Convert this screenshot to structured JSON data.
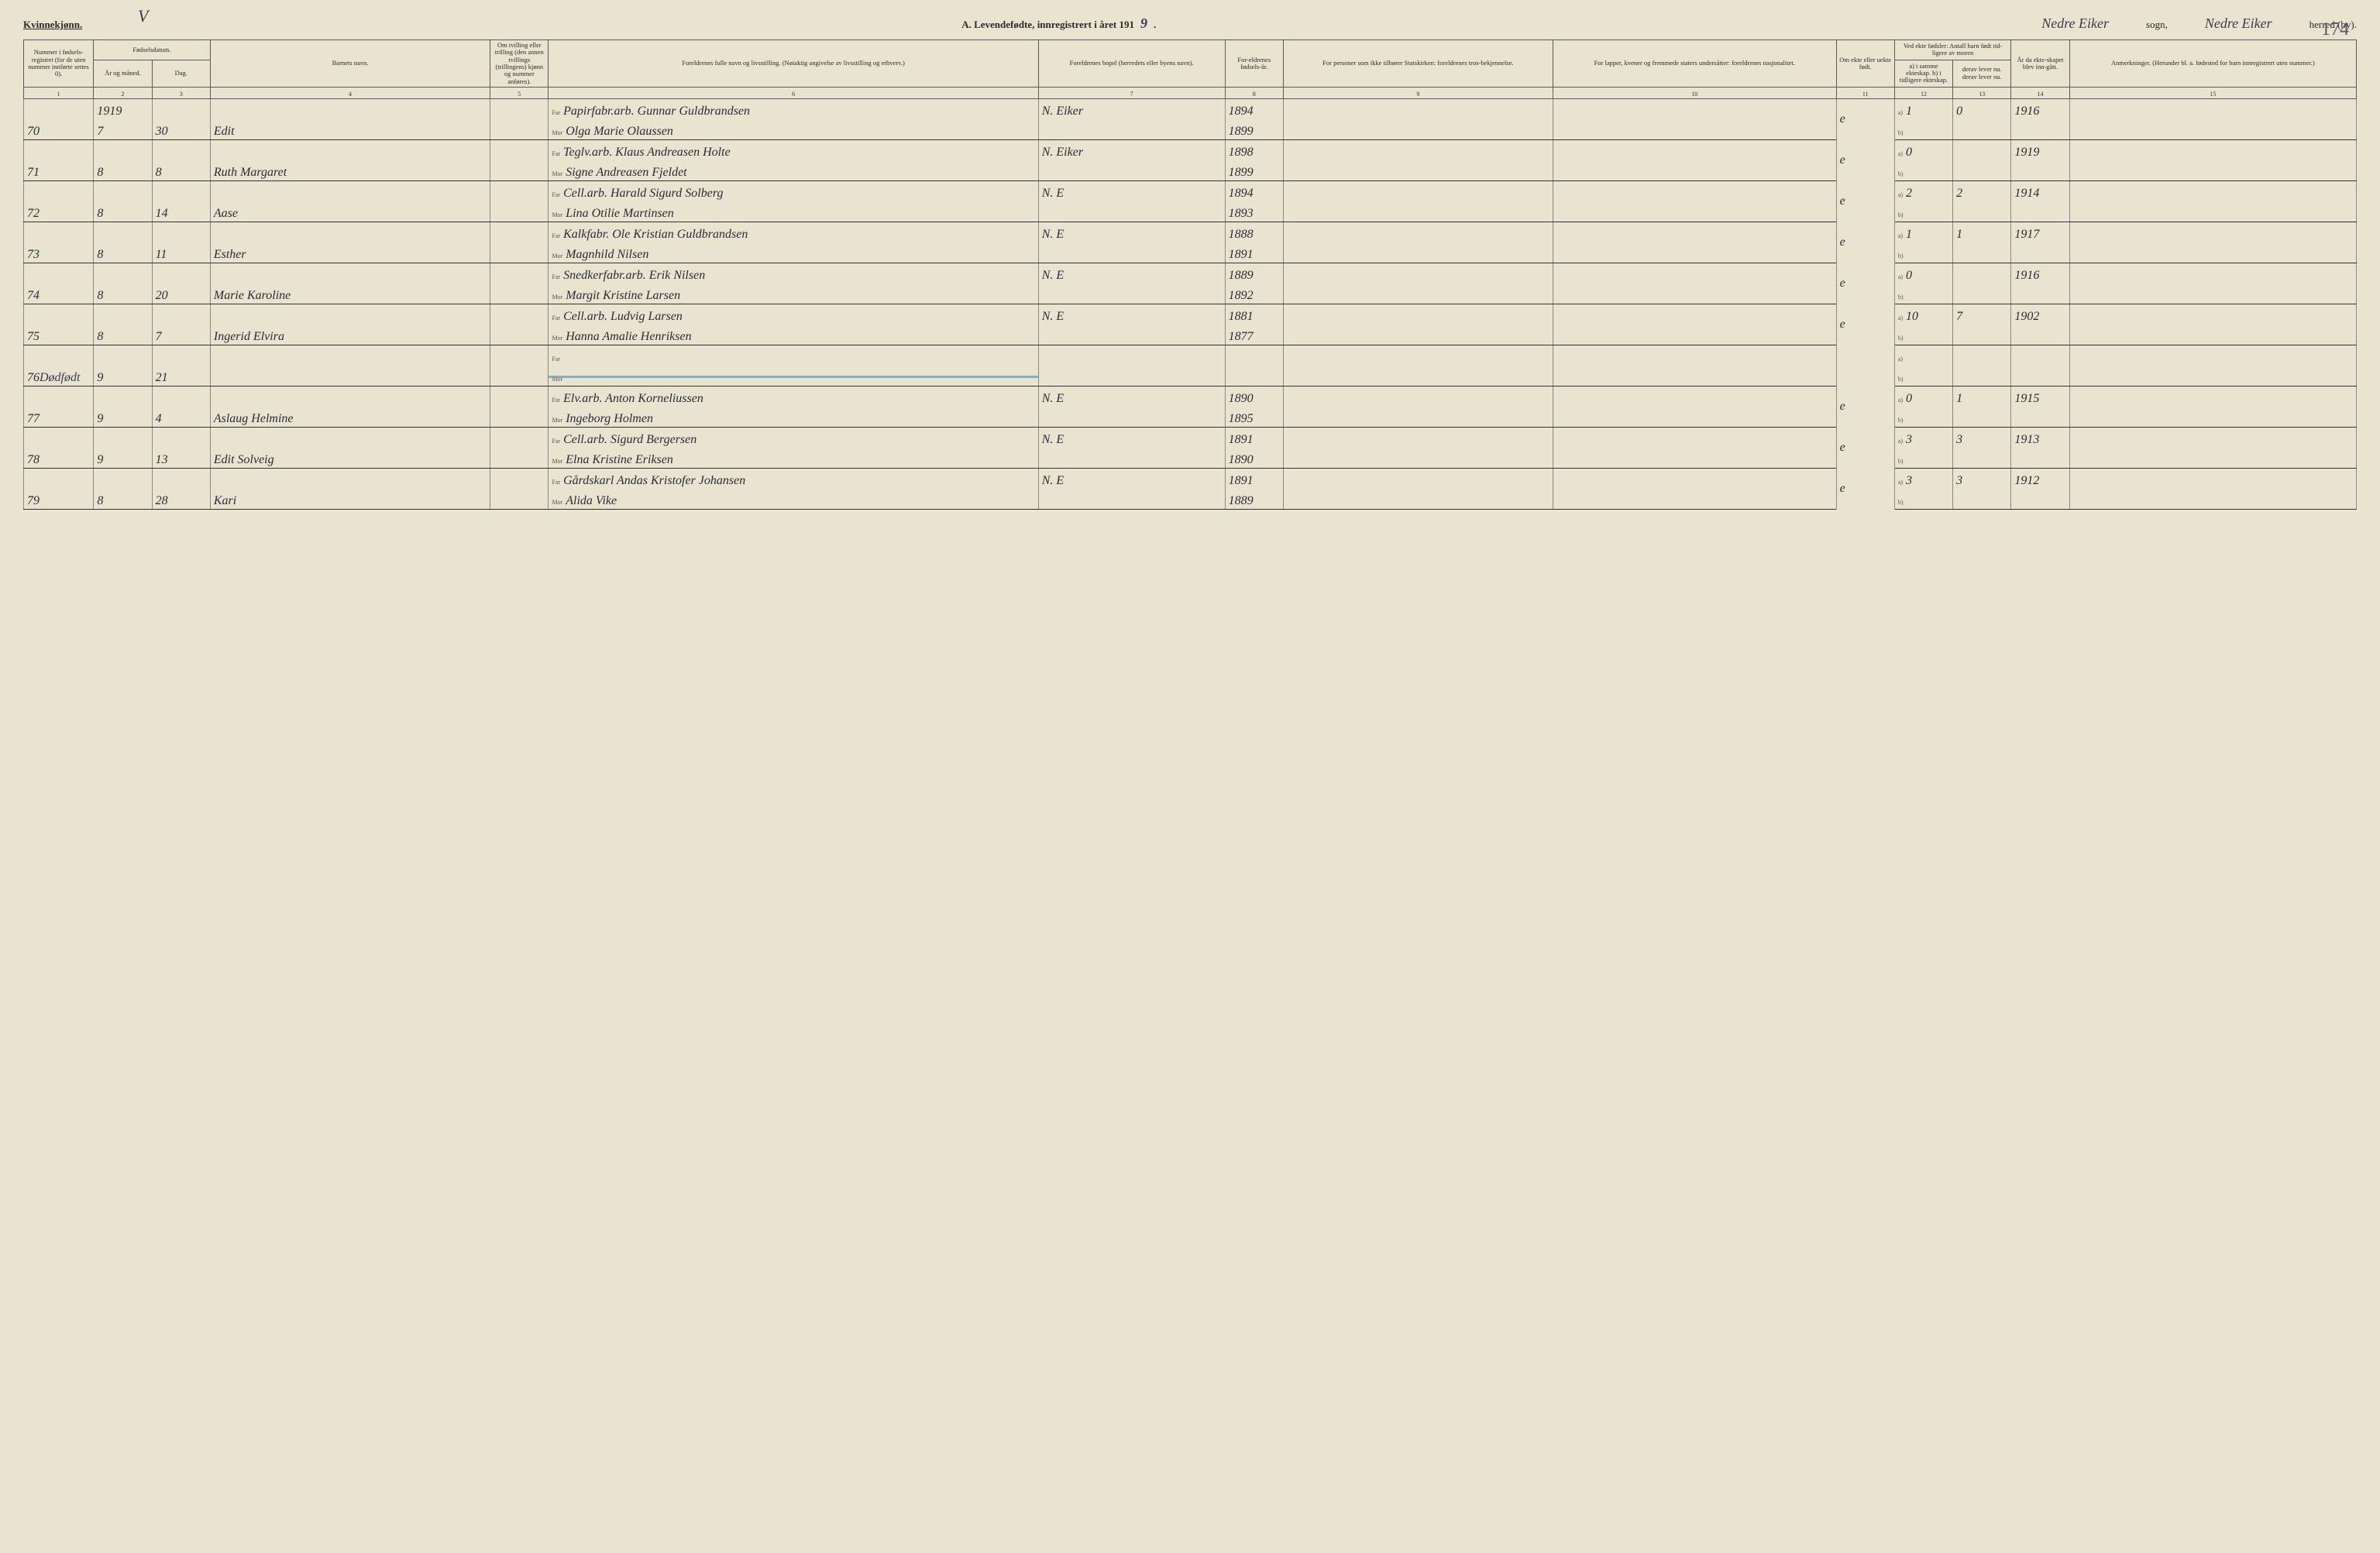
{
  "header": {
    "gender_label": "Kvinnekjønn.",
    "title_prefix": "A.  Levendefødte, innregistrert i året 191",
    "year_suffix": "9",
    "sogn_value": "Nedre Eiker",
    "sogn_label": "sogn,",
    "herred_value": "Nedre Eiker",
    "herred_label": "herred (by).",
    "page_number": "174",
    "top_mark": "V"
  },
  "columns": {
    "c1": "Nummer i fødsels-registret (for de uten nummer innførte settes 0).",
    "c2_group": "Fødselsdatum.",
    "c2": "År og måned.",
    "c3": "Dag.",
    "c4": "Barnets navn.",
    "c5": "Om tvilling eller trilling (den annen tvillings (trillingens) kjønn og nummer anføres).",
    "c6": "Foreldrenes fulle navn og livsstilling. (Nøiaktig angivelse av livsstilling og erhverv.)",
    "c7": "Foreldrenes bopel (herredets eller byens navn).",
    "c8": "For-eldrenes fødsels-år.",
    "c9": "For personer som ikke tilhører Statskirken: foreldrenes tros-bekjennelse.",
    "c10": "For lapper, kvener og fremmede staters undersåtter: foreldrenes nasjonalitet.",
    "c11": "Om ekte eller uekte født.",
    "c12_group": "Ved ekte fødsler: Antall barn født tid-ligere av moren",
    "c12": "a) i samme ekteskap.  b) i tidligere ekteskap.",
    "c13": "derav lever nu.  derav lever nu.",
    "c14": "År da ekte-skapet blev inn-gått.",
    "c15": "Anmerkninger. (Herunder bl. a. fødested for barn innregistrert uten nummer.)"
  },
  "col_nums": [
    "1",
    "2",
    "3",
    "4",
    "5",
    "6",
    "7",
    "8",
    "9",
    "10",
    "11",
    "12",
    "13",
    "14",
    "15"
  ],
  "far_label": "Far",
  "mor_label": "Mor",
  "a_label": "a)",
  "b_label": "b)",
  "margin_note": "Dødfødt",
  "rows": [
    {
      "num": "70",
      "year_month_top": "1919",
      "year_month": "7",
      "day": "30",
      "name": "Edit",
      "far": "Papirfabr.arb. Gunnar Guldbrandsen",
      "mor": "Olga Marie Olaussen",
      "place": "N. Eiker",
      "far_year": "1894",
      "mor_year": "1899",
      "ekte": "e",
      "a12": "1",
      "a13": "0",
      "year14": "1916"
    },
    {
      "num": "71",
      "year_month": "8",
      "day": "8",
      "name": "Ruth Margaret",
      "far": "Teglv.arb. Klaus Andreasen Holte",
      "mor": "Signe Andreasen Fjeldet",
      "place": "N. Eiker",
      "far_year": "1898",
      "mor_year": "1899",
      "ekte": "e",
      "a12": "0",
      "a13": "",
      "year14": "1919"
    },
    {
      "num": "72",
      "year_month": "8",
      "day": "14",
      "name": "Aase",
      "far": "Cell.arb. Harald Sigurd Solberg",
      "mor": "Lina Otilie Martinsen",
      "place": "N. E",
      "far_year": "1894",
      "mor_year": "1893",
      "ekte": "e",
      "a12": "2",
      "a13": "2",
      "year14": "1914"
    },
    {
      "num": "73",
      "year_month": "8",
      "day": "11",
      "name": "Esther",
      "far": "Kalkfabr. Ole Kristian Guldbrandsen",
      "mor": "Magnhild Nilsen",
      "place": "N. E",
      "far_year": "1888",
      "mor_year": "1891",
      "ekte": "e",
      "a12": "1",
      "a13": "1",
      "year14": "1917"
    },
    {
      "num": "74",
      "year_month": "8",
      "day": "20",
      "name": "Marie Karoline",
      "far": "Snedkerfabr.arb. Erik Nilsen",
      "mor": "Margit Kristine Larsen",
      "place": "N. E",
      "far_year": "1889",
      "mor_year": "1892",
      "ekte": "e",
      "a12": "0",
      "a13": "",
      "year14": "1916"
    },
    {
      "num": "75",
      "year_month": "8",
      "day": "7",
      "name": "Ingerid Elvira",
      "far": "Cell.arb. Ludvig Larsen",
      "mor": "Hanna Amalie Henriksen",
      "place": "N. E",
      "far_year": "1881",
      "mor_year": "1877",
      "ekte": "e",
      "a12": "10",
      "a13": "7",
      "year14": "1902"
    },
    {
      "num": "76",
      "year_month": "9",
      "day": "21",
      "name": "",
      "far": "",
      "mor": "",
      "place": "",
      "far_year": "",
      "mor_year": "",
      "ekte": "",
      "a12": "",
      "a13": "",
      "year14": "",
      "struck": true
    },
    {
      "num": "77",
      "year_month": "9",
      "day": "4",
      "name": "Aslaug Helmine",
      "far": "Elv.arb. Anton Korneliussen",
      "mor": "Ingeborg Holmen",
      "place": "N. E",
      "far_year": "1890",
      "mor_year": "1895",
      "ekte": "e",
      "a12": "0",
      "a13": "1",
      "year14": "1915"
    },
    {
      "num": "78",
      "year_month": "9",
      "day": "13",
      "name": "Edit Solveig",
      "far": "Cell.arb. Sigurd Bergersen",
      "mor": "Elna Kristine Eriksen",
      "place": "N. E",
      "far_year": "1891",
      "mor_year": "1890",
      "ekte": "e",
      "a12": "3",
      "a13": "3",
      "year14": "1913"
    },
    {
      "num": "79",
      "year_month": "8",
      "day": "28",
      "name": "Kari",
      "far": "Gårdskarl Andas Kristofer Johansen",
      "mor": "Alida Vike",
      "place": "N. E",
      "far_year": "1891",
      "mor_year": "1889",
      "ekte": "e",
      "a12": "3",
      "a13": "3",
      "year14": "1912"
    }
  ]
}
